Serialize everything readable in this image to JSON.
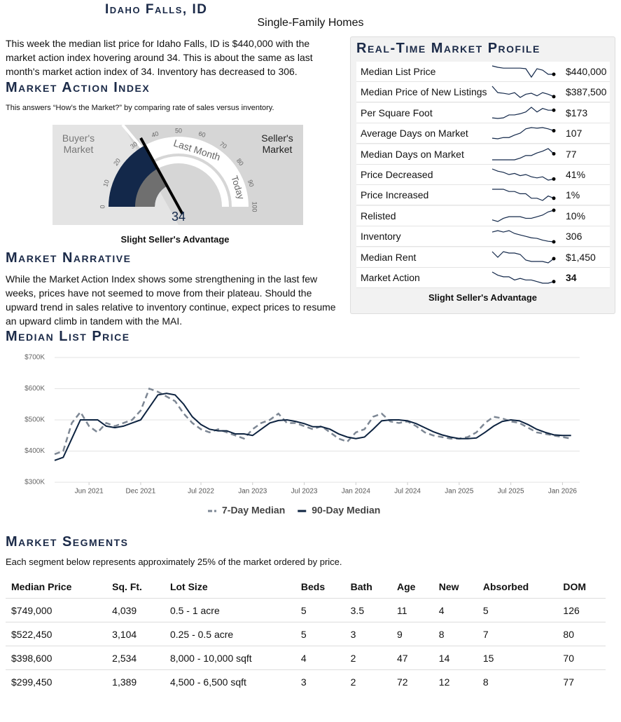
{
  "header": {
    "title": "Idaho Falls, ID",
    "subtitle": "Single-Family Homes"
  },
  "intro": "This week the median list price for Idaho Falls, ID is $440,000 with the market action index hovering around 34. This is about the same as last month's market action index of 34. Inventory has decreased to 306.",
  "market_action_index": {
    "heading": "Market Action Index",
    "description": "This answers “How’s the Market?” by comparing rate of sales versus inventory.",
    "buyers_label": "Buyer's Market",
    "sellers_label": "Seller's Market",
    "ticks": [
      0,
      10,
      20,
      30,
      40,
      50,
      60,
      70,
      80,
      90,
      100
    ],
    "value": 34,
    "last_month_value": 34,
    "last_month_label": "Last Month",
    "today_label": "Today",
    "caption": "Slight Seller's Advantage"
  },
  "market_narrative": {
    "heading": "Market Narrative",
    "text": "While the Market Action Index shows some strengthening in the last few weeks, prices have not seemed to move from their plateau. Should the upward trend in sales relative to inventory continue, expect prices to resume an upward climb in tandem with the MAI."
  },
  "profile": {
    "heading": "Real-Time Market Profile",
    "rows": [
      {
        "label": "Median List Price",
        "value": "$440,000",
        "trend": [
          470000,
          465000,
          462000,
          462000,
          462000,
          462000,
          460000,
          430000,
          460000,
          455000,
          440000,
          440000
        ]
      },
      {
        "label": "Median Price of New Listings",
        "value": "$387,500",
        "trend": [
          420000,
          400000,
          398000,
          395000,
          400000,
          385000,
          395000,
          398000,
          390000,
          400000,
          395000,
          387500
        ]
      },
      {
        "label": "Per Square Foot",
        "value": "$173",
        "trend": [
          160,
          159,
          160,
          165,
          165,
          167,
          170,
          178,
          170,
          176,
          173,
          173
        ]
      },
      {
        "label": "Average Days on Market",
        "value": "107",
        "trend": [
          95,
          94,
          96,
          96,
          100,
          103,
          110,
          112,
          111,
          112,
          110,
          107
        ]
      },
      {
        "label": "Median Days on Market",
        "value": "77",
        "trend": [
          70,
          70,
          70,
          70,
          70,
          72,
          75,
          75,
          78,
          80,
          83,
          77
        ]
      },
      {
        "label": "Price Decreased",
        "value": "41%",
        "trend": [
          50,
          48,
          47,
          45,
          46,
          44,
          45,
          43,
          42,
          43,
          40,
          41
        ]
      },
      {
        "label": "Price Increased",
        "value": "1%",
        "trend": [
          3,
          3,
          3,
          2.5,
          2.5,
          2,
          2,
          1,
          1,
          0.5,
          1.5,
          1
        ]
      },
      {
        "label": "Relisted",
        "value": "10%",
        "trend": [
          7,
          6.5,
          7.5,
          8,
          8,
          8,
          7.5,
          7.5,
          8,
          8.5,
          9.5,
          10
        ]
      },
      {
        "label": "Inventory",
        "value": "306",
        "trend": [
          340,
          345,
          340,
          345,
          335,
          330,
          325,
          320,
          318,
          312,
          308,
          306
        ]
      },
      {
        "label": "Median Rent",
        "value": "$1,450",
        "trend": [
          1500,
          1460,
          1500,
          1490,
          1490,
          1480,
          1440,
          1430,
          1430,
          1430,
          1420,
          1450
        ]
      },
      {
        "label": "Market Action",
        "value": "34",
        "trend": [
          40,
          38,
          37,
          37,
          35,
          36,
          35,
          35,
          34,
          33,
          33,
          34
        ]
      }
    ],
    "caption": "Slight Seller's Advantage"
  },
  "chart_data": {
    "type": "line",
    "title": "Median List Price",
    "x": [
      "2021-02",
      "2021-03",
      "2021-04",
      "2021-05",
      "2021-06",
      "2021-07",
      "2021-08",
      "2021-09",
      "2021-10",
      "2021-11",
      "2021-12",
      "2022-01",
      "2022-02",
      "2022-03",
      "2022-04",
      "2022-05",
      "2022-06",
      "2022-07",
      "2022-08",
      "2022-09",
      "2022-10",
      "2022-11",
      "2022-12",
      "2023-01",
      "2023-02",
      "2023-03",
      "2023-04",
      "2023-05",
      "2023-06",
      "2023-07",
      "2023-08",
      "2023-09",
      "2023-10",
      "2023-11",
      "2023-12",
      "2024-01",
      "2024-02",
      "2024-03",
      "2024-04",
      "2024-05",
      "2024-06",
      "2024-07",
      "2024-08",
      "2024-09",
      "2024-10",
      "2024-11",
      "2024-12",
      "2025-01",
      "2025-02",
      "2025-03",
      "2025-04",
      "2025-05",
      "2025-06",
      "2025-07",
      "2025-08",
      "2025-09",
      "2025-10",
      "2025-11",
      "2025-12",
      "2026-01",
      "2026-02"
    ],
    "series": [
      {
        "name": "7-Day Median",
        "color": "#7d8794",
        "dashed": true,
        "values": [
          390000,
          400000,
          490000,
          525000,
          480000,
          460000,
          490000,
          480000,
          490000,
          500000,
          530000,
          600000,
          590000,
          575000,
          560000,
          520000,
          490000,
          470000,
          460000,
          470000,
          460000,
          450000,
          440000,
          470000,
          490000,
          500000,
          520000,
          490000,
          490000,
          480000,
          470000,
          480000,
          460000,
          440000,
          430000,
          460000,
          470000,
          510000,
          520000,
          495000,
          490000,
          495000,
          480000,
          460000,
          450000,
          445000,
          440000,
          440000,
          445000,
          460000,
          490000,
          510000,
          505000,
          495000,
          490000,
          475000,
          460000,
          455000,
          450000,
          445000,
          440000
        ]
      },
      {
        "name": "90-Day Median",
        "color": "#0d2340",
        "dashed": false,
        "values": [
          370000,
          380000,
          440000,
          500000,
          500000,
          500000,
          480000,
          475000,
          480000,
          490000,
          500000,
          540000,
          580000,
          585000,
          580000,
          550000,
          510000,
          485000,
          470000,
          465000,
          465000,
          455000,
          455000,
          450000,
          470000,
          490000,
          498000,
          500000,
          495000,
          488000,
          478000,
          478000,
          470000,
          455000,
          445000,
          440000,
          445000,
          470000,
          497000,
          500000,
          500000,
          497000,
          488000,
          475000,
          462000,
          452000,
          445000,
          440000,
          440000,
          442000,
          460000,
          480000,
          495000,
          500000,
          497000,
          485000,
          470000,
          460000,
          452000,
          450000,
          450000
        ]
      }
    ],
    "xlim": [
      "2021-02",
      "2026-03"
    ],
    "xticks": [
      {
        "value": "2021-06",
        "label": "Jun 2021"
      },
      {
        "value": "2021-12",
        "label": "Dec 2021"
      },
      {
        "value": "2022-07",
        "label": "Jul 2022"
      },
      {
        "value": "2023-01",
        "label": "Jan 2023"
      },
      {
        "value": "2023-07",
        "label": "Jul 2023"
      },
      {
        "value": "2024-01",
        "label": "Jan 2024"
      },
      {
        "value": "2024-07",
        "label": "Jul 2024"
      },
      {
        "value": "2025-01",
        "label": "Jan 2025"
      },
      {
        "value": "2025-07",
        "label": "Jul 2025"
      },
      {
        "value": "2026-01",
        "label": "Jan 2026"
      }
    ],
    "ylim": [
      300000,
      700000
    ],
    "yticks": [
      {
        "value": 300000,
        "label": "$300K"
      },
      {
        "value": 400000,
        "label": "$400K"
      },
      {
        "value": 500000,
        "label": "$500K"
      },
      {
        "value": 600000,
        "label": "$600K"
      },
      {
        "value": 700000,
        "label": "$700K"
      }
    ],
    "grid": true,
    "legend": "bottom"
  },
  "segments": {
    "heading": "Market Segments",
    "description": "Each segment below represents approximately 25% of the market ordered by price.",
    "columns": [
      "Median Price",
      "Sq. Ft.",
      "Lot Size",
      "Beds",
      "Bath",
      "Age",
      "New",
      "Absorbed",
      "DOM"
    ],
    "rows": [
      [
        "$749,000",
        "4,039",
        "0.5 - 1 acre",
        "5",
        "3.5",
        "11",
        "4",
        "5",
        "126"
      ],
      [
        "$522,450",
        "3,104",
        "0.25 - 0.5 acre",
        "5",
        "3",
        "9",
        "8",
        "7",
        "80"
      ],
      [
        "$398,600",
        "2,534",
        "8,000 - 10,000 sqft",
        "4",
        "2",
        "47",
        "14",
        "15",
        "70"
      ],
      [
        "$299,450",
        "1,389",
        "4,500 - 6,500 sqft",
        "3",
        "2",
        "72",
        "12",
        "8",
        "77"
      ]
    ]
  }
}
